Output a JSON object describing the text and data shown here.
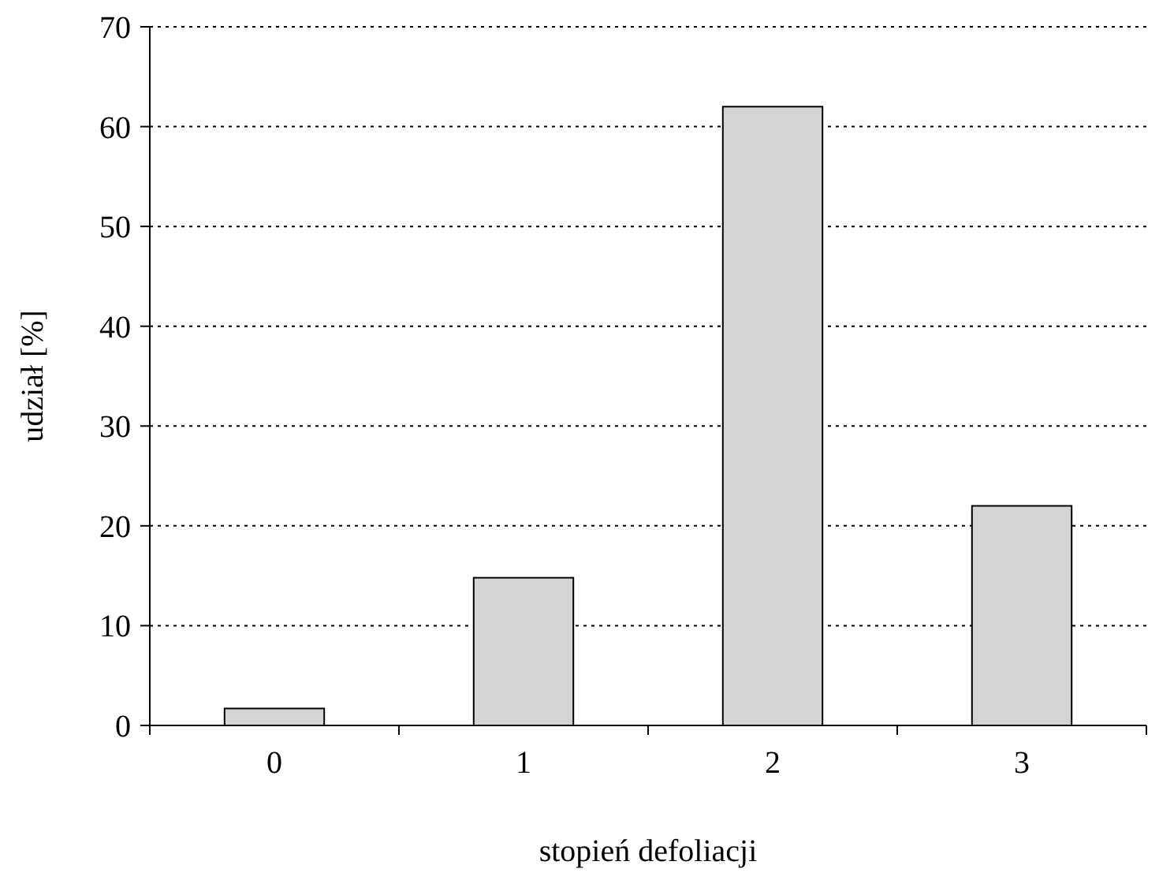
{
  "chart_data": {
    "type": "bar",
    "xlabel": "stopień defoliacji",
    "ylabel": "udział [%]",
    "categories": [
      "0",
      "1",
      "2",
      "3"
    ],
    "values": [
      1.7,
      14.8,
      62,
      22
    ],
    "color": "#d4d4d4",
    "ylim": [
      0,
      70
    ],
    "yticks": [
      0,
      10,
      20,
      30,
      40,
      50,
      60,
      70
    ],
    "grid": "y"
  }
}
